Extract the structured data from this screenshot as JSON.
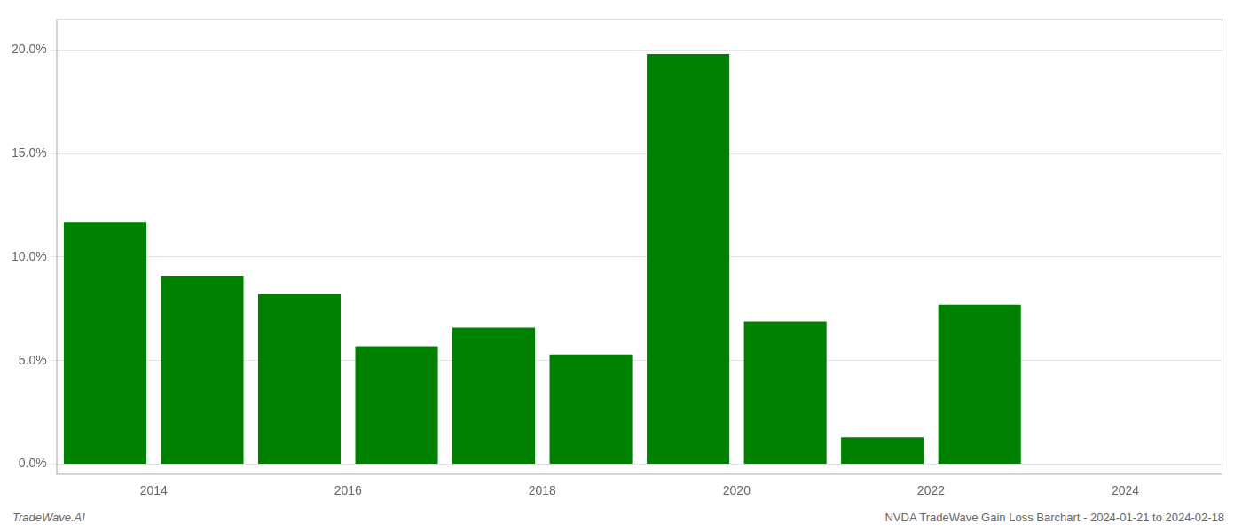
{
  "chart_data": {
    "type": "bar",
    "x": [
      2013,
      2014,
      2015,
      2016,
      2017,
      2018,
      2019,
      2020,
      2021,
      2022,
      2023
    ],
    "values": [
      0.117,
      0.091,
      0.082,
      0.057,
      0.066,
      0.053,
      0.198,
      0.069,
      0.013,
      0.077,
      0.0
    ],
    "color": "#008000",
    "xlim": [
      2012.5,
      2024.5
    ],
    "xticks": [
      {
        "value": 2013.5,
        "label": "2014"
      },
      {
        "value": 2015.5,
        "label": "2016"
      },
      {
        "value": 2017.5,
        "label": "2018"
      },
      {
        "value": 2019.5,
        "label": "2020"
      },
      {
        "value": 2021.5,
        "label": "2022"
      },
      {
        "value": 2023.5,
        "label": "2024"
      }
    ],
    "ylim": [
      -0.005,
      0.215
    ],
    "yticks": [
      {
        "value": 0.0,
        "label": "0.0%"
      },
      {
        "value": 0.05,
        "label": "5.0%"
      },
      {
        "value": 0.1,
        "label": "10.0%"
      },
      {
        "value": 0.15,
        "label": "15.0%"
      },
      {
        "value": 0.2,
        "label": "20.0%"
      }
    ],
    "grid": true,
    "annotations": [
      "TradeWave.AI",
      "NVDA TradeWave Gain Loss Barchart - 2024-01-21 to 2024-02-18"
    ]
  }
}
